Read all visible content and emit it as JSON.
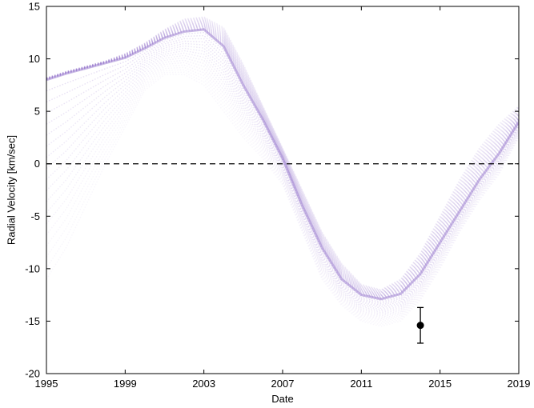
{
  "chart_data": {
    "type": "line",
    "title": "",
    "xlabel": "Date",
    "ylabel": "Radial Velocity [km/sec]",
    "xlim": [
      1995,
      2019
    ],
    "ylim": [
      -20,
      15
    ],
    "x_ticks": [
      1995,
      1999,
      2003,
      2007,
      2011,
      2015,
      2019
    ],
    "y_ticks": [
      -20,
      -15,
      -10,
      -5,
      0,
      5,
      10,
      15
    ],
    "grid": false,
    "legend": "none",
    "reference_line": {
      "y": 0,
      "style": "dashed",
      "color": "#000000"
    },
    "curve_band": {
      "description_color": "#9d7fd0",
      "x": [
        1995,
        1996,
        1997,
        1998,
        1999,
        2000,
        2001,
        2002,
        2003,
        2004,
        2005,
        2006,
        2007,
        2008,
        2009,
        2010,
        2011,
        2012,
        2013,
        2014,
        2015,
        2016,
        2017,
        2018,
        2019
      ],
      "central": [
        8.0,
        8.6,
        9.1,
        9.6,
        10.1,
        11.0,
        12.0,
        12.6,
        12.8,
        11.2,
        7.5,
        4.2,
        0.5,
        -4.0,
        -8.0,
        -11.0,
        -12.5,
        -12.9,
        -12.4,
        -10.5,
        -7.5,
        -4.5,
        -1.5,
        1.0,
        4.0
      ],
      "upper": [
        8.2,
        8.8,
        9.3,
        9.8,
        10.5,
        11.5,
        12.8,
        13.8,
        14.0,
        13.0,
        9.5,
        5.5,
        1.5,
        -2.5,
        -6.5,
        -9.5,
        -11.5,
        -12.0,
        -11.0,
        -8.5,
        -5.0,
        -1.5,
        1.5,
        3.8,
        5.5
      ],
      "lower": [
        -11.0,
        -8.0,
        -4.0,
        0.0,
        3.5,
        7.0,
        8.5,
        8.5,
        7.5,
        5.0,
        2.5,
        0.5,
        -2.0,
        -6.5,
        -11.0,
        -13.5,
        -15.0,
        -15.5,
        -15.0,
        -13.0,
        -10.0,
        -6.5,
        -3.5,
        -1.0,
        2.5
      ]
    },
    "series": [
      {
        "type": "errorbar",
        "x": [
          2014.0
        ],
        "y": [
          -15.4
        ],
        "yerr_low": [
          -17.1
        ],
        "yerr_high": [
          -13.7
        ],
        "color": "#000000"
      }
    ]
  }
}
